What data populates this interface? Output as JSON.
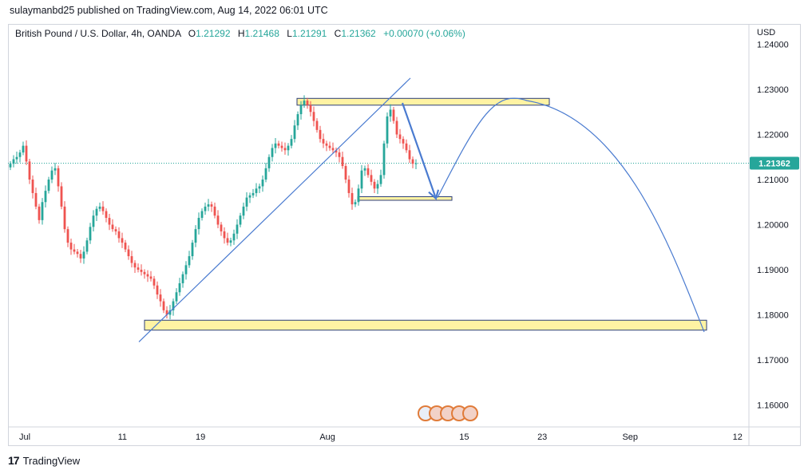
{
  "header": {
    "published_text": "sulaymanbd25 published on TradingView.com, Aug 14, 2022 06:01 UTC"
  },
  "legend": {
    "symbol": "British Pound / U.S. Dollar, 4h, OANDA",
    "open_label": "O",
    "open": "1.21292",
    "high_label": "H",
    "high": "1.21468",
    "low_label": "L",
    "low": "1.21291",
    "close_label": "C",
    "close": "1.21362",
    "change": "+0.00070 (+0.06%)"
  },
  "footer": {
    "logo_icon": "tradingview-logo-icon",
    "brand": "TradingView"
  },
  "colors": {
    "up": "#26a69a",
    "down": "#ef5350",
    "line": "#4a7bd0",
    "zone_fill": "#fff3a3",
    "zone_stroke": "#2c3e7a",
    "price_label": "#26a69a"
  },
  "chart_data": {
    "type": "candlestick",
    "currency": "USD",
    "current_price": "1.21362",
    "y_ticks": [
      "1.24000",
      "1.23000",
      "1.22000",
      "1.21000",
      "1.20000",
      "1.19000",
      "1.18000",
      "1.17000",
      "1.16000"
    ],
    "x_ticks": [
      "Jul",
      "11",
      "19",
      "Aug",
      "15",
      "23",
      "Sep",
      "12"
    ],
    "ylim": [
      1.1545,
      1.2431
    ],
    "close_series": [
      1.2135,
      1.2145,
      1.215,
      1.216,
      1.2175,
      1.214,
      1.21,
      1.207,
      1.204,
      1.201,
      1.205,
      1.2075,
      1.21,
      1.212,
      1.2125,
      1.2085,
      1.204,
      1.199,
      1.196,
      1.1945,
      1.194,
      1.1935,
      1.1925,
      1.194,
      1.1965,
      1.1995,
      1.202,
      1.2035,
      1.204,
      1.203,
      1.2015,
      1.2,
      1.199,
      1.1985,
      1.197,
      1.196,
      1.1945,
      1.193,
      1.1915,
      1.1905,
      1.19,
      1.1895,
      1.189,
      1.1885,
      1.188,
      1.1865,
      1.1845,
      1.183,
      1.181,
      1.18,
      1.181,
      1.183,
      1.185,
      1.187,
      1.189,
      1.191,
      1.193,
      1.196,
      1.199,
      1.2015,
      1.203,
      1.204,
      1.2045,
      1.204,
      1.202,
      1.2,
      1.1985,
      1.197,
      1.196,
      1.1965,
      1.198,
      1.2,
      1.202,
      1.204,
      1.206,
      1.2065,
      1.207,
      1.208,
      1.2085,
      1.21,
      1.2125,
      1.215,
      1.217,
      1.218,
      1.2175,
      1.217,
      1.2165,
      1.2175,
      1.219,
      1.222,
      1.2245,
      1.2265,
      1.2275,
      1.2265,
      1.225,
      1.223,
      1.221,
      1.219,
      1.218,
      1.2175,
      1.217,
      1.2165,
      1.216,
      1.215,
      1.213,
      1.21,
      1.207,
      1.2045,
      1.205,
      1.208,
      1.212,
      1.2125,
      1.211,
      1.2095,
      1.208,
      1.209,
      1.211,
      1.218,
      1.224,
      1.2255,
      1.223,
      1.22,
      1.219,
      1.218,
      1.2165,
      1.2145,
      1.2135,
      1.2136
    ],
    "annotations": {
      "resistance_zone": [
        1.2265,
        1.228
      ],
      "support_zone": [
        1.2054,
        1.2062
      ],
      "bottom_zone": [
        1.1766,
        1.1788
      ],
      "uptrend_line": [
        [
          "Jul 14",
          1.174
        ],
        [
          "Aug 11",
          1.2325
        ]
      ],
      "projected_arrow": [
        [
          "Aug 10",
          1.227
        ],
        [
          "Aug 16",
          1.2058
        ]
      ],
      "projected_curve": "rise from 1.2058 to 1.2275 near Aug 26, then fall to 1.1760 near Sep 13"
    }
  }
}
